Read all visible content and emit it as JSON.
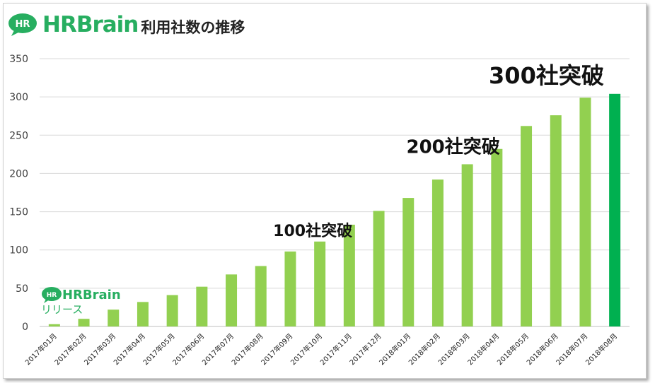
{
  "header": {
    "logo_badge": "HR",
    "logo_text": "HRBrain",
    "title": "利用社数の推移"
  },
  "colors": {
    "bar": "#92d050",
    "bar_highlight": "#00b050",
    "brand": "#27ae60"
  },
  "release_marker": {
    "logo_badge": "HR",
    "logo_text": "HRBrain",
    "label": "リリース"
  },
  "chart_data": {
    "type": "bar",
    "title": "利用社数の推移",
    "categories": [
      "2017年01月",
      "2017年02月",
      "2017年03月",
      "2017年04月",
      "2017年05月",
      "2017年06月",
      "2017年07月",
      "2017年08月",
      "2017年09月",
      "2017年10月",
      "2017年11月",
      "2017年12月",
      "2018年01月",
      "2018年02月",
      "2018年03月",
      "2018年04月",
      "2018年05月",
      "2018年06月",
      "2018年07月",
      "2018年08月"
    ],
    "values": [
      3,
      10,
      22,
      32,
      41,
      52,
      68,
      79,
      98,
      111,
      133,
      151,
      168,
      192,
      212,
      232,
      262,
      276,
      299,
      304
    ],
    "highlight_index": 19,
    "ylim": [
      0,
      350
    ],
    "yticks": [
      0,
      50,
      100,
      150,
      200,
      250,
      300,
      350
    ],
    "grid": true,
    "annotations": [
      {
        "text": "100社突破",
        "category_index": 9
      },
      {
        "text": "200社突破",
        "category_index": 14
      },
      {
        "text": "300社突破",
        "category_index": 18
      }
    ]
  }
}
